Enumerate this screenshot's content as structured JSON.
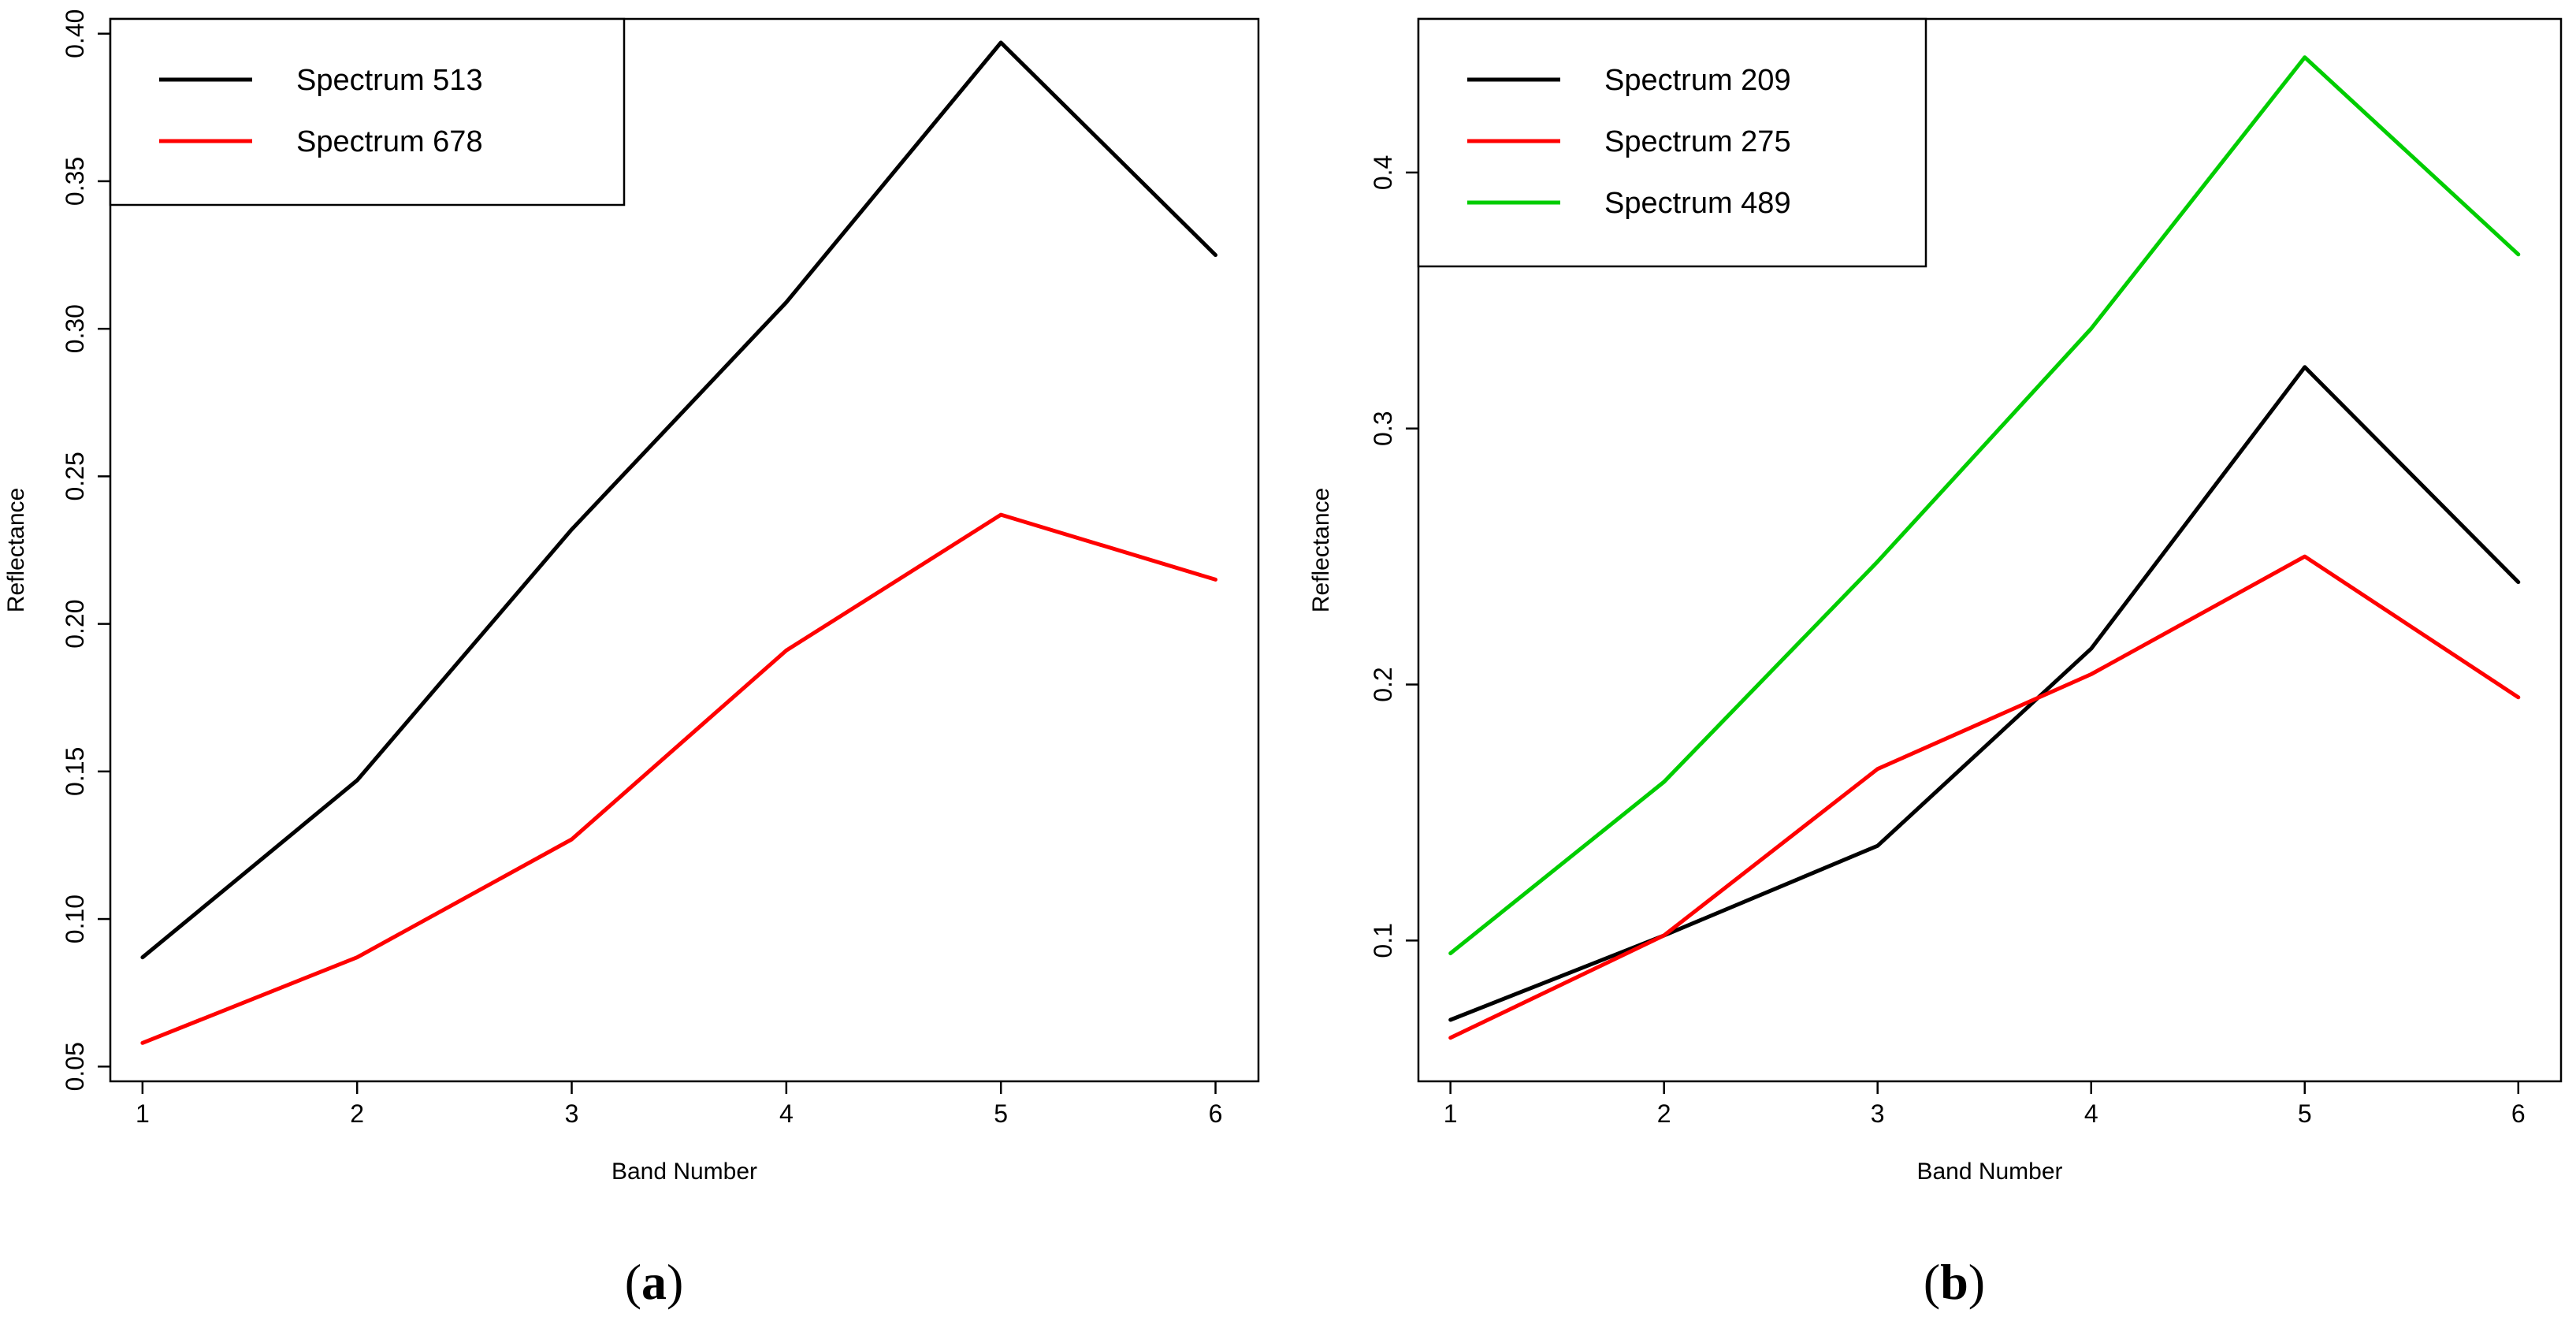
{
  "chart_data": [
    {
      "type": "line",
      "panel_label": "(a)",
      "panel_letter": "a",
      "xlabel": "Band Number",
      "ylabel": "Reflectance",
      "x": [
        1,
        2,
        3,
        4,
        5,
        6
      ],
      "xlim": [
        0.85,
        6.2
      ],
      "ylim": [
        0.045,
        0.405
      ],
      "yticks": [
        0.05,
        0.1,
        0.15,
        0.2,
        0.25,
        0.3,
        0.35,
        0.4
      ],
      "ytick_labels": [
        "0.05",
        "0.10",
        "0.15",
        "0.20",
        "0.25",
        "0.30",
        "0.35",
        "0.40"
      ],
      "xtick_labels": [
        "1",
        "2",
        "3",
        "4",
        "5",
        "6"
      ],
      "legend_position": "top-left",
      "series": [
        {
          "name": "Spectrum 513",
          "color": "#000000",
          "values": [
            0.087,
            0.147,
            0.232,
            0.309,
            0.397,
            0.325
          ]
        },
        {
          "name": "Spectrum 678",
          "color": "#ff0000",
          "values": [
            0.058,
            0.087,
            0.127,
            0.191,
            0.237,
            0.215
          ]
        }
      ]
    },
    {
      "type": "line",
      "panel_label": "(b)",
      "panel_letter": "b",
      "xlabel": "Band Number",
      "ylabel": "Reflectance",
      "x": [
        1,
        2,
        3,
        4,
        5,
        6
      ],
      "xlim": [
        0.85,
        6.2
      ],
      "ylim": [
        0.045,
        0.46
      ],
      "yticks": [
        0.1,
        0.2,
        0.3,
        0.4
      ],
      "ytick_labels": [
        "0.1",
        "0.2",
        "0.3",
        "0.4"
      ],
      "xtick_labels": [
        "1",
        "2",
        "3",
        "4",
        "5",
        "6"
      ],
      "legend_position": "top-left",
      "series": [
        {
          "name": "Spectrum 209",
          "color": "#000000",
          "values": [
            0.069,
            0.102,
            0.137,
            0.214,
            0.324,
            0.24
          ]
        },
        {
          "name": "Spectrum 275",
          "color": "#ff0000",
          "values": [
            0.062,
            0.102,
            0.167,
            0.204,
            0.25,
            0.195
          ]
        },
        {
          "name": "Spectrum 489",
          "color": "#00cd00",
          "values": [
            0.095,
            0.162,
            0.248,
            0.339,
            0.445,
            0.368
          ]
        }
      ]
    }
  ]
}
